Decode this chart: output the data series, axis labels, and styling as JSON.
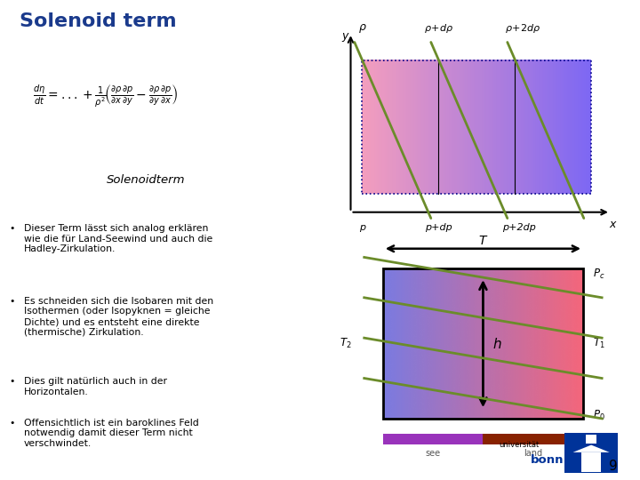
{
  "title": "Solenoid term",
  "title_color": "#1a3a8c",
  "bg_color": "#ffffff",
  "slide_number": "9",
  "formula_box_color": "#ffff99",
  "bullet_points": [
    "Dieser Term lässt sich analog erklären\nwie die für Land-Seewind und auch die\nHadley-Zirkulation.",
    "Es schneiden sich die Isobaren mit den\nIsothermen (oder Isopyknen = gleiche\nDichte) und es entsteht eine direkte\n(thermische) Zirkulation.",
    "Dies gilt natürlich auch in der\nHorizontalen.",
    "Offensichtlich ist ein baroklines Feld\nnotwendig damit dieser Term nicht\nverschwindet."
  ],
  "unibo_blue": "#003399",
  "bar_sea_color": "#9933bb",
  "bar_land_color": "#882200"
}
